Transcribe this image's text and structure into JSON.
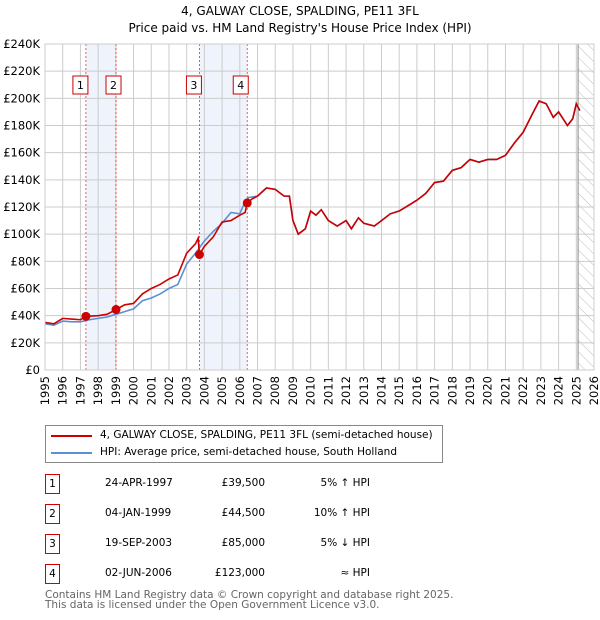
{
  "chart_data": {
    "type": "line",
    "title": "4, GALWAY CLOSE, SPALDING, PE11 3FL",
    "subtitle": "Price paid vs. HM Land Registry's House Price Index (HPI)",
    "xlim": [
      1995,
      2026
    ],
    "ylim": [
      0,
      240000
    ],
    "x_ticks": [
      "1995",
      "1996",
      "1997",
      "1998",
      "1999",
      "2000",
      "2001",
      "2002",
      "2003",
      "2004",
      "2005",
      "2006",
      "2007",
      "2008",
      "2009",
      "2010",
      "2011",
      "2012",
      "2013",
      "2014",
      "2015",
      "2016",
      "2017",
      "2018",
      "2019",
      "2020",
      "2021",
      "2022",
      "2023",
      "2024",
      "2025",
      "2026"
    ],
    "y_ticks": [
      {
        "v": 0,
        "label": "£0"
      },
      {
        "v": 20000,
        "label": "£20K"
      },
      {
        "v": 40000,
        "label": "£40K"
      },
      {
        "v": 60000,
        "label": "£60K"
      },
      {
        "v": 80000,
        "label": "£80K"
      },
      {
        "v": 100000,
        "label": "£100K"
      },
      {
        "v": 120000,
        "label": "£120K"
      },
      {
        "v": 140000,
        "label": "£140K"
      },
      {
        "v": 160000,
        "label": "£160K"
      },
      {
        "v": 180000,
        "label": "£180K"
      },
      {
        "v": 200000,
        "label": "£200K"
      },
      {
        "v": 220000,
        "label": "£220K"
      },
      {
        "v": 240000,
        "label": "£240K"
      }
    ],
    "grid": true,
    "shaded_periods": [
      [
        1997.31,
        1999.01
      ],
      [
        2003.72,
        2006.42
      ]
    ],
    "future_hatch_from": 2025.1,
    "series": [
      {
        "name": "4, GALWAY CLOSE, SPALDING, PE11 3FL (semi-detached house)",
        "color": "#cc0000",
        "x": [
          1995,
          1995.5,
          1996,
          1996.5,
          1997,
          1997.31,
          1998,
          1998.5,
          1999.01,
          1999.5,
          2000,
          2000.5,
          2001,
          2001.5,
          2002,
          2002.5,
          2003,
          2003.5,
          2003.65,
          2003.72,
          2004,
          2004.5,
          2005,
          2005.5,
          2006,
          2006.3,
          2006.42,
          2006.7,
          2007,
          2007.5,
          2008,
          2008.5,
          2008.8,
          2009,
          2009.3,
          2009.7,
          2010,
          2010.3,
          2010.6,
          2011,
          2011.5,
          2012,
          2012.3,
          2012.7,
          2013,
          2013.6,
          2014,
          2014.5,
          2015,
          2015.5,
          2016,
          2016.5,
          2017,
          2017.5,
          2018,
          2018.5,
          2019,
          2019.5,
          2020,
          2020.5,
          2021,
          2021.5,
          2022,
          2022.5,
          2022.9,
          2023.3,
          2023.7,
          2024,
          2024.5,
          2024.8,
          2025,
          2025.2
        ],
        "y": [
          35000,
          34000,
          38000,
          37500,
          37000,
          39500,
          40000,
          41000,
          44500,
          48000,
          49000,
          56000,
          60000,
          63000,
          67000,
          70000,
          86000,
          93000,
          97000,
          85000,
          91000,
          98000,
          109000,
          110000,
          114000,
          116000,
          123000,
          126000,
          128000,
          134000,
          133000,
          128000,
          128000,
          110000,
          100000,
          104000,
          117000,
          114000,
          118000,
          110000,
          106000,
          110000,
          104000,
          112000,
          108000,
          106000,
          110000,
          115000,
          117000,
          121000,
          125000,
          130000,
          138000,
          139000,
          147000,
          149000,
          155000,
          153000,
          155000,
          155000,
          158000,
          167000,
          175000,
          188000,
          198000,
          196000,
          186000,
          190000,
          180000,
          185000,
          196000,
          191000
        ]
      },
      {
        "name": "HPI: Average price, semi-detached house, South Holland",
        "color": "#5b8fd4",
        "x": [
          1995,
          1995.5,
          1996,
          1996.5,
          1997,
          1997.5,
          1998,
          1998.5,
          1999,
          1999.5,
          2000,
          2000.5,
          2001,
          2001.5,
          2002,
          2002.5,
          2003,
          2003.5,
          2004,
          2004.5,
          2005,
          2005.5,
          2006,
          2006.3,
          2006.5,
          2007,
          2007.5,
          2008,
          2008.5,
          2008.8,
          2009,
          2009.3,
          2009.7,
          2010,
          2010.3,
          2010.6,
          2011,
          2011.5,
          2012,
          2012.3,
          2012.7,
          2013,
          2013.6,
          2014,
          2014.5,
          2015,
          2015.5,
          2016,
          2016.5,
          2017,
          2017.5,
          2018,
          2018.5,
          2019,
          2019.5,
          2020,
          2020.5,
          2021,
          2021.5,
          2022,
          2022.5,
          2022.9,
          2023.3,
          2023.7,
          2024,
          2024.5,
          2024.8,
          2025,
          2025.2
        ],
        "y": [
          34000,
          33000,
          36000,
          35500,
          35500,
          37000,
          38000,
          39000,
          41000,
          43000,
          45000,
          51000,
          53000,
          56000,
          60000,
          63000,
          78000,
          86000,
          95000,
          102000,
          108000,
          116000,
          115000,
          124000,
          127000,
          128000,
          134000,
          133000,
          128000,
          128000,
          110000,
          100000,
          104000,
          117000,
          114000,
          118000,
          110000,
          106000,
          110000,
          104000,
          112000,
          108000,
          106000,
          110000,
          115000,
          117000,
          121000,
          125000,
          130000,
          138000,
          139000,
          147000,
          149000,
          155000,
          153000,
          155000,
          155000,
          158000,
          167000,
          175000,
          188000,
          198000,
          196000,
          186000,
          190000,
          180000,
          185000,
          196000,
          191000
        ]
      }
    ],
    "sales": [
      {
        "n": "1",
        "date": "24-APR-1997",
        "x": 1997.31,
        "price": "£39,500",
        "value": 39500,
        "hpi": "5% ↑ HPI"
      },
      {
        "n": "2",
        "date": "04-JAN-1999",
        "x": 1999.01,
        "price": "£44,500",
        "value": 44500,
        "hpi": "10% ↑ HPI"
      },
      {
        "n": "3",
        "date": "19-SEP-2003",
        "x": 2003.72,
        "price": "£85,000",
        "value": 85000,
        "hpi": "5% ↓ HPI"
      },
      {
        "n": "4",
        "date": "02-JUN-2006",
        "x": 2006.42,
        "price": "£123,000",
        "value": 123000,
        "hpi": "≈ HPI"
      }
    ]
  },
  "legend": {
    "property": "4, GALWAY CLOSE, SPALDING, PE11 3FL (semi-detached house)",
    "hpi": "HPI: Average price, semi-detached house, South Holland"
  },
  "footer": {
    "line1": "Contains HM Land Registry data © Crown copyright and database right 2025.",
    "line2": "This data is licensed under the Open Government Licence v3.0."
  }
}
